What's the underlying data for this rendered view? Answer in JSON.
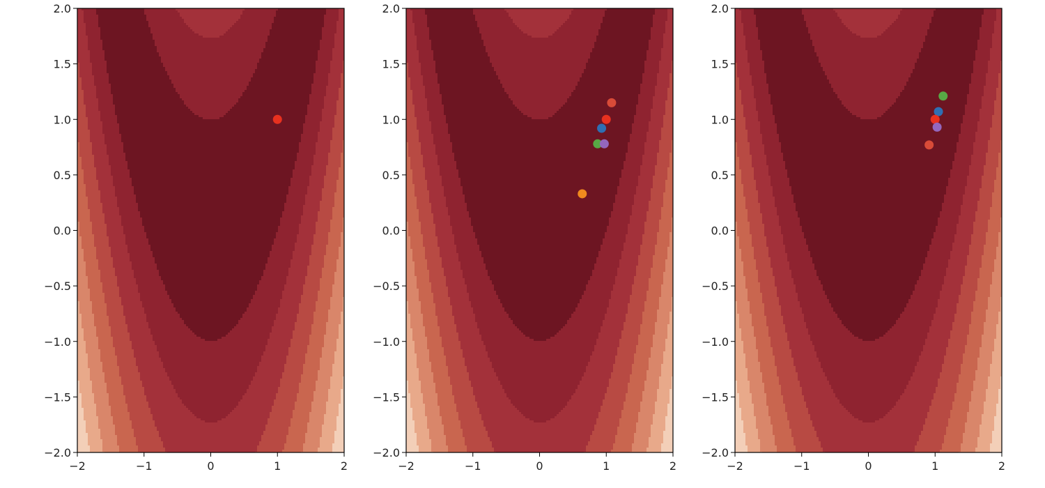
{
  "figure": {
    "colormap": [
      "#6d1522",
      "#8f2330",
      "#a3313a",
      "#b84a43",
      "#c9664f",
      "#d9866a",
      "#e8a98a",
      "#f3cfb8",
      "#faf0ea",
      "#e3e3e3",
      "#b0b0b0",
      "#707070",
      "#303030"
    ],
    "contour_levels": [
      0,
      100,
      300,
      600,
      1000,
      1500,
      2100,
      2800,
      3600,
      4500,
      5500,
      6600,
      7800
    ]
  },
  "chart_data": [
    {
      "type": "scatter",
      "title": "",
      "xlabel": "",
      "ylabel": "",
      "xlim": [
        -2,
        2
      ],
      "ylim": [
        -2,
        2
      ],
      "xticks": [
        "−2",
        "−1",
        "0",
        "1",
        "2"
      ],
      "yticks": [
        "2.0",
        "1.5",
        "1.0",
        "0.5",
        "0.0",
        "−0.5",
        "−1.0",
        "−1.5",
        "−2.0"
      ],
      "background": "filled contour of the Rosenbrock function",
      "grid": false,
      "points": [
        {
          "x": 1.0,
          "y": 1.0,
          "color": "#e8311f"
        }
      ]
    },
    {
      "type": "scatter",
      "title": "",
      "xlabel": "",
      "ylabel": "",
      "xlim": [
        -2,
        2
      ],
      "ylim": [
        -2,
        2
      ],
      "xticks": [
        "−2",
        "−1",
        "0",
        "1",
        "2"
      ],
      "yticks": [
        "2.0",
        "1.5",
        "1.0",
        "0.5",
        "0.0",
        "−0.5",
        "−1.0",
        "−1.5",
        "−2.0"
      ],
      "background": "filled contour of the Rosenbrock function",
      "grid": false,
      "points": [
        {
          "x": 1.08,
          "y": 1.15,
          "color": "#d84b38"
        },
        {
          "x": 1.0,
          "y": 1.0,
          "color": "#e8311f"
        },
        {
          "x": 0.93,
          "y": 0.92,
          "color": "#2f6fb3"
        },
        {
          "x": 0.87,
          "y": 0.78,
          "color": "#58a845"
        },
        {
          "x": 0.97,
          "y": 0.78,
          "color": "#9467bd"
        },
        {
          "x": 0.64,
          "y": 0.33,
          "color": "#f08a1e"
        }
      ]
    },
    {
      "type": "scatter",
      "title": "",
      "xlabel": "",
      "ylabel": "",
      "xlim": [
        -2,
        2
      ],
      "ylim": [
        -2,
        2
      ],
      "xticks": [
        "−2",
        "−1",
        "0",
        "1",
        "2"
      ],
      "yticks": [
        "2.0",
        "1.5",
        "1.0",
        "0.5",
        "0.0",
        "−0.5",
        "−1.0",
        "−1.5",
        "−2.0"
      ],
      "background": "filled contour of the Rosenbrock function",
      "grid": false,
      "points": [
        {
          "x": 1.12,
          "y": 1.21,
          "color": "#58a845"
        },
        {
          "x": 1.05,
          "y": 1.07,
          "color": "#2f6fb3"
        },
        {
          "x": 1.0,
          "y": 1.0,
          "color": "#e8311f"
        },
        {
          "x": 1.03,
          "y": 0.93,
          "color": "#9467bd"
        },
        {
          "x": 0.91,
          "y": 0.77,
          "color": "#d84b38"
        }
      ]
    }
  ]
}
